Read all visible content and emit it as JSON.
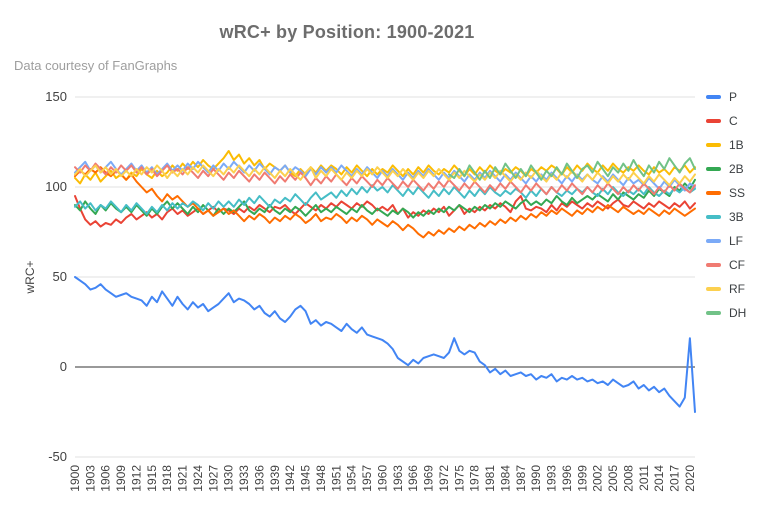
{
  "header": {
    "title": "wRC+ by Position: 1900-2021",
    "subtitle": "Data courtesy of FanGraphs"
  },
  "chart_data": {
    "type": "line",
    "title": "wRC+ by Position: 1900-2021",
    "subtitle": "Data courtesy of FanGraphs",
    "xlabel": "",
    "ylabel": "wRC+",
    "ylim": [
      -50,
      150
    ],
    "yticks": [
      150,
      100,
      50,
      0,
      -50
    ],
    "x_range": [
      1900,
      2021
    ],
    "x_step": 1,
    "xticks": [
      1900,
      1903,
      1906,
      1909,
      1912,
      1915,
      1918,
      1921,
      1924,
      1927,
      1930,
      1933,
      1936,
      1939,
      1942,
      1945,
      1948,
      1951,
      1954,
      1957,
      1960,
      1963,
      1966,
      1969,
      1972,
      1975,
      1978,
      1981,
      1984,
      1987,
      1990,
      1993,
      1996,
      1999,
      2002,
      2005,
      2008,
      2011,
      2014,
      2017,
      2020
    ],
    "grid": "horizontal",
    "zero_line": true,
    "legend_position": "right",
    "colors": {
      "grid": "#e0e0e0",
      "zero_line": "#333333",
      "tick_text": "#424242"
    },
    "series": [
      {
        "name": "P",
        "color": "#4285F4",
        "values": [
          50,
          48,
          46,
          43,
          44,
          46,
          43,
          41,
          39,
          40,
          41,
          39,
          38,
          37,
          34,
          39,
          36,
          42,
          38,
          34,
          39,
          35,
          32,
          36,
          33,
          35,
          31,
          33,
          35,
          38,
          41,
          36,
          38,
          37,
          35,
          32,
          34,
          30,
          28,
          31,
          27,
          25,
          28,
          32,
          34,
          31,
          24,
          26,
          23,
          25,
          24,
          22,
          20,
          24,
          21,
          19,
          22,
          18,
          17,
          16,
          15,
          13,
          10,
          5,
          3,
          1,
          4,
          2,
          5,
          6,
          7,
          6,
          5,
          8,
          16,
          9,
          7,
          9,
          8,
          3,
          1,
          -3,
          -1,
          -4,
          -2,
          -5,
          -4,
          -3,
          -5,
          -4,
          -7,
          -5,
          -6,
          -4,
          -8,
          -6,
          -7,
          -5,
          -7,
          -6,
          -8,
          -7,
          -9,
          -8,
          -10,
          -7,
          -9,
          -11,
          -10,
          -8,
          -12,
          -10,
          -13,
          -11,
          -14,
          -12,
          -16,
          -19,
          -22,
          -17,
          16,
          -25
        ]
      },
      {
        "name": "C",
        "color": "#EA4335",
        "values": [
          95,
          88,
          82,
          79,
          81,
          78,
          80,
          79,
          82,
          80,
          83,
          85,
          82,
          84,
          86,
          83,
          85,
          82,
          86,
          88,
          85,
          87,
          84,
          86,
          88,
          85,
          87,
          89,
          86,
          88,
          87,
          85,
          88,
          86,
          89,
          87,
          90,
          88,
          86,
          89,
          88,
          90,
          87,
          85,
          88,
          91,
          89,
          87,
          90,
          88,
          91,
          89,
          92,
          90,
          88,
          91,
          89,
          92,
          90,
          87,
          89,
          87,
          90,
          85,
          88,
          83,
          86,
          84,
          87,
          85,
          88,
          86,
          89,
          84,
          87,
          90,
          85,
          88,
          86,
          89,
          87,
          90,
          88,
          91,
          89,
          86,
          92,
          95,
          88,
          87,
          89,
          88,
          86,
          90,
          87,
          91,
          89,
          92,
          90,
          88,
          91,
          89,
          92,
          90,
          88,
          91,
          93,
          90,
          89,
          92,
          90,
          88,
          91,
          89,
          92,
          90,
          88,
          91,
          89,
          92,
          88,
          91
        ]
      },
      {
        "name": "1B",
        "color": "#FBBC04",
        "values": [
          105,
          102,
          107,
          104,
          108,
          103,
          106,
          109,
          105,
          107,
          104,
          108,
          106,
          110,
          107,
          105,
          109,
          106,
          108,
          112,
          109,
          113,
          110,
          114,
          111,
          115,
          112,
          110,
          113,
          116,
          120,
          115,
          118,
          113,
          116,
          112,
          115,
          110,
          113,
          111,
          109,
          112,
          108,
          106,
          110,
          107,
          111,
          108,
          112,
          109,
          112,
          110,
          107,
          111,
          108,
          112,
          109,
          106,
          110,
          107,
          110,
          108,
          112,
          109,
          106,
          110,
          107,
          111,
          108,
          112,
          109,
          107,
          110,
          108,
          112,
          109,
          106,
          110,
          107,
          111,
          108,
          112,
          109,
          107,
          110,
          108,
          111,
          109,
          106,
          110,
          108,
          111,
          109,
          112,
          110,
          107,
          111,
          108,
          112,
          109,
          113,
          110,
          108,
          112,
          109,
          113,
          110,
          108,
          111,
          109,
          112,
          109,
          107,
          111,
          108,
          110,
          107,
          111,
          109,
          112,
          108,
          111
        ]
      },
      {
        "name": "2B",
        "color": "#34A853",
        "values": [
          90,
          87,
          92,
          88,
          85,
          90,
          87,
          91,
          88,
          86,
          89,
          86,
          90,
          87,
          84,
          88,
          85,
          89,
          92,
          88,
          91,
          88,
          85,
          89,
          86,
          90,
          87,
          84,
          88,
          85,
          88,
          86,
          89,
          92,
          87,
          85,
          88,
          86,
          90,
          87,
          85,
          88,
          86,
          89,
          87,
          84,
          87,
          90,
          86,
          88,
          86,
          89,
          87,
          85,
          88,
          86,
          90,
          87,
          85,
          88,
          86,
          84,
          87,
          85,
          88,
          86,
          83,
          86,
          84,
          87,
          85,
          88,
          86,
          89,
          87,
          90,
          88,
          86,
          89,
          87,
          90,
          88,
          91,
          89,
          92,
          90,
          88,
          91,
          93,
          90,
          92,
          90,
          93,
          91,
          95,
          92,
          90,
          94,
          91,
          93,
          95,
          93,
          96,
          94,
          92,
          96,
          93,
          97,
          95,
          93,
          96,
          94,
          98,
          95,
          99,
          97,
          95,
          100,
          98,
          102,
          99,
          104
        ]
      },
      {
        "name": "SS",
        "color": "#FF6D01",
        "values": [
          106,
          109,
          107,
          110,
          108,
          111,
          108,
          106,
          109,
          107,
          104,
          107,
          103,
          100,
          97,
          99,
          95,
          92,
          96,
          93,
          95,
          92,
          89,
          91,
          88,
          85,
          87,
          84,
          86,
          88,
          85,
          87,
          84,
          81,
          84,
          82,
          85,
          83,
          80,
          83,
          81,
          84,
          82,
          85,
          83,
          80,
          82,
          85,
          81,
          83,
          82,
          85,
          83,
          80,
          83,
          81,
          84,
          82,
          79,
          82,
          80,
          78,
          81,
          79,
          76,
          79,
          77,
          74,
          72,
          75,
          73,
          76,
          74,
          77,
          75,
          78,
          76,
          79,
          77,
          80,
          78,
          81,
          79,
          82,
          80,
          83,
          81,
          84,
          82,
          85,
          83,
          86,
          84,
          87,
          85,
          88,
          86,
          84,
          87,
          85,
          88,
          86,
          89,
          87,
          90,
          88,
          86,
          89,
          87,
          85,
          87,
          85,
          88,
          86,
          84,
          87,
          85,
          88,
          86,
          84,
          86,
          88
        ]
      },
      {
        "name": "3B",
        "color": "#46BDC6",
        "values": [
          89,
          92,
          88,
          91,
          87,
          90,
          88,
          92,
          89,
          86,
          90,
          87,
          91,
          88,
          85,
          89,
          86,
          90,
          87,
          91,
          88,
          91,
          89,
          92,
          90,
          87,
          91,
          88,
          92,
          89,
          92,
          89,
          93,
          90,
          94,
          91,
          95,
          92,
          89,
          93,
          91,
          94,
          92,
          96,
          93,
          90,
          94,
          97,
          93,
          95,
          97,
          94,
          98,
          95,
          99,
          96,
          100,
          97,
          101,
          98,
          100,
          97,
          101,
          98,
          95,
          99,
          96,
          100,
          97,
          94,
          98,
          95,
          99,
          96,
          100,
          97,
          94,
          98,
          95,
          99,
          96,
          100,
          97,
          95,
          98,
          96,
          99,
          97,
          94,
          98,
          95,
          99,
          96,
          100,
          97,
          95,
          98,
          96,
          99,
          97,
          100,
          97,
          95,
          99,
          96,
          100,
          97,
          95,
          98,
          96,
          99,
          96,
          100,
          97,
          95,
          98,
          96,
          99,
          97,
          100,
          97,
          99
        ]
      },
      {
        "name": "LF",
        "color": "#7BAAF7",
        "values": [
          108,
          111,
          114,
          109,
          112,
          108,
          111,
          114,
          110,
          107,
          110,
          113,
          109,
          112,
          108,
          111,
          107,
          110,
          113,
          109,
          112,
          109,
          113,
          110,
          114,
          111,
          108,
          112,
          109,
          113,
          110,
          114,
          111,
          108,
          112,
          109,
          113,
          110,
          107,
          111,
          109,
          112,
          108,
          111,
          109,
          106,
          110,
          107,
          111,
          108,
          111,
          108,
          112,
          109,
          106,
          110,
          107,
          111,
          108,
          105,
          109,
          106,
          110,
          107,
          104,
          108,
          105,
          109,
          106,
          110,
          107,
          104,
          108,
          105,
          109,
          106,
          103,
          107,
          104,
          108,
          105,
          109,
          106,
          103,
          107,
          104,
          108,
          105,
          102,
          106,
          103,
          107,
          104,
          108,
          105,
          102,
          106,
          103,
          107,
          104,
          107,
          104,
          102,
          106,
          103,
          107,
          104,
          101,
          105,
          102,
          104,
          101,
          105,
          102,
          99,
          103,
          100,
          104,
          101,
          98,
          102,
          100
        ]
      },
      {
        "name": "CF",
        "color": "#F07B72",
        "values": [
          111,
          108,
          112,
          109,
          113,
          110,
          107,
          111,
          108,
          112,
          109,
          112,
          108,
          111,
          107,
          110,
          106,
          109,
          112,
          108,
          110,
          107,
          111,
          108,
          105,
          109,
          106,
          110,
          107,
          104,
          108,
          105,
          109,
          106,
          103,
          107,
          104,
          108,
          105,
          102,
          106,
          103,
          107,
          104,
          108,
          105,
          101,
          105,
          102,
          106,
          103,
          107,
          104,
          101,
          105,
          102,
          106,
          103,
          100,
          104,
          101,
          105,
          102,
          99,
          103,
          100,
          104,
          101,
          98,
          102,
          99,
          103,
          100,
          104,
          101,
          98,
          102,
          99,
          103,
          100,
          97,
          101,
          98,
          102,
          99,
          103,
          100,
          97,
          101,
          98,
          102,
          99,
          96,
          100,
          97,
          101,
          98,
          102,
          99,
          96,
          100,
          97,
          101,
          98,
          102,
          99,
          96,
          100,
          97,
          101,
          98,
          102,
          99,
          96,
          100,
          97,
          101,
          98,
          102,
          99,
          97,
          101
        ]
      },
      {
        "name": "RF",
        "color": "#FCD04F",
        "values": [
          107,
          110,
          106,
          109,
          112,
          108,
          111,
          107,
          110,
          106,
          109,
          106,
          110,
          107,
          111,
          108,
          112,
          109,
          105,
          109,
          106,
          110,
          107,
          111,
          108,
          112,
          109,
          106,
          110,
          107,
          111,
          108,
          112,
          109,
          106,
          110,
          107,
          111,
          108,
          105,
          109,
          106,
          110,
          107,
          104,
          108,
          111,
          105,
          109,
          106,
          110,
          107,
          104,
          108,
          105,
          109,
          106,
          110,
          107,
          111,
          108,
          105,
          109,
          106,
          110,
          107,
          104,
          108,
          105,
          109,
          106,
          110,
          107,
          104,
          108,
          105,
          109,
          106,
          103,
          107,
          104,
          108,
          105,
          109,
          106,
          103,
          107,
          104,
          108,
          105,
          109,
          106,
          103,
          107,
          104,
          108,
          105,
          109,
          106,
          103,
          107,
          104,
          108,
          105,
          102,
          106,
          103,
          107,
          104,
          108,
          105,
          102,
          106,
          103,
          107,
          104,
          101,
          105,
          102,
          106,
          103,
          107
        ]
      },
      {
        "name": "DH",
        "color": "#71C287",
        "values": [
          null,
          null,
          null,
          null,
          null,
          null,
          null,
          null,
          null,
          null,
          null,
          null,
          null,
          null,
          null,
          null,
          null,
          null,
          null,
          null,
          null,
          null,
          null,
          null,
          null,
          null,
          null,
          null,
          null,
          null,
          null,
          null,
          null,
          null,
          null,
          null,
          null,
          null,
          null,
          null,
          null,
          null,
          null,
          null,
          null,
          null,
          null,
          null,
          null,
          null,
          null,
          null,
          null,
          null,
          null,
          null,
          null,
          null,
          null,
          null,
          null,
          null,
          null,
          null,
          null,
          null,
          null,
          null,
          null,
          null,
          null,
          null,
          null,
          107,
          105,
          110,
          106,
          112,
          108,
          104,
          109,
          105,
          111,
          107,
          113,
          109,
          105,
          110,
          106,
          112,
          108,
          104,
          109,
          106,
          111,
          107,
          113,
          109,
          105,
          110,
          112,
          108,
          114,
          110,
          106,
          111,
          108,
          113,
          109,
          115,
          110,
          106,
          112,
          108,
          114,
          110,
          116,
          112,
          108,
          113,
          116,
          110
        ]
      }
    ]
  }
}
